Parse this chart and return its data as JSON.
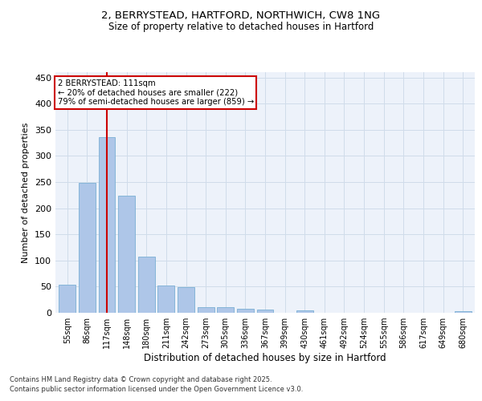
{
  "title1": "2, BERRYSTEAD, HARTFORD, NORTHWICH, CW8 1NG",
  "title2": "Size of property relative to detached houses in Hartford",
  "xlabel": "Distribution of detached houses by size in Hartford",
  "ylabel": "Number of detached properties",
  "categories": [
    "55sqm",
    "86sqm",
    "117sqm",
    "148sqm",
    "180sqm",
    "211sqm",
    "242sqm",
    "273sqm",
    "305sqm",
    "336sqm",
    "367sqm",
    "399sqm",
    "430sqm",
    "461sqm",
    "492sqm",
    "524sqm",
    "555sqm",
    "586sqm",
    "617sqm",
    "649sqm",
    "680sqm"
  ],
  "values": [
    53,
    248,
    336,
    224,
    107,
    52,
    49,
    11,
    10,
    8,
    6,
    0,
    4,
    0,
    0,
    0,
    0,
    0,
    0,
    0,
    3
  ],
  "bar_color": "#aec6e8",
  "bar_edge_color": "#7aafd4",
  "grid_color": "#d0dcea",
  "background_color": "#edf2fa",
  "vline_x": 2,
  "vline_color": "#cc0000",
  "annotation_title": "2 BERRYSTEAD: 111sqm",
  "annotation_line1": "← 20% of detached houses are smaller (222)",
  "annotation_line2": "79% of semi-detached houses are larger (859) →",
  "annotation_box_color": "#cc0000",
  "ylim": [
    0,
    460
  ],
  "yticks": [
    0,
    50,
    100,
    150,
    200,
    250,
    300,
    350,
    400,
    450
  ],
  "footer1": "Contains HM Land Registry data © Crown copyright and database right 2025.",
  "footer2": "Contains public sector information licensed under the Open Government Licence v3.0."
}
